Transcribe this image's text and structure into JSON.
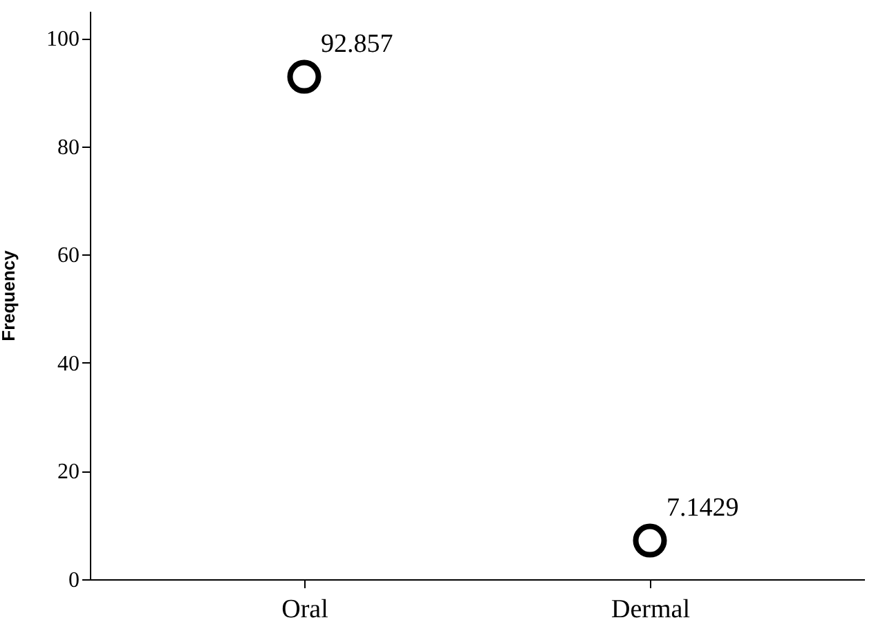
{
  "chart_data": {
    "type": "scatter",
    "ylabel": "Frequency",
    "categories": [
      "Oral",
      "Dermal"
    ],
    "values": [
      92.857,
      7.1429
    ],
    "color": "#000000",
    "ylim": [
      0,
      105
    ],
    "yticks": [
      0,
      20,
      40,
      60,
      80,
      100
    ],
    "grid": false,
    "marker": "circle",
    "data_labels": true
  }
}
